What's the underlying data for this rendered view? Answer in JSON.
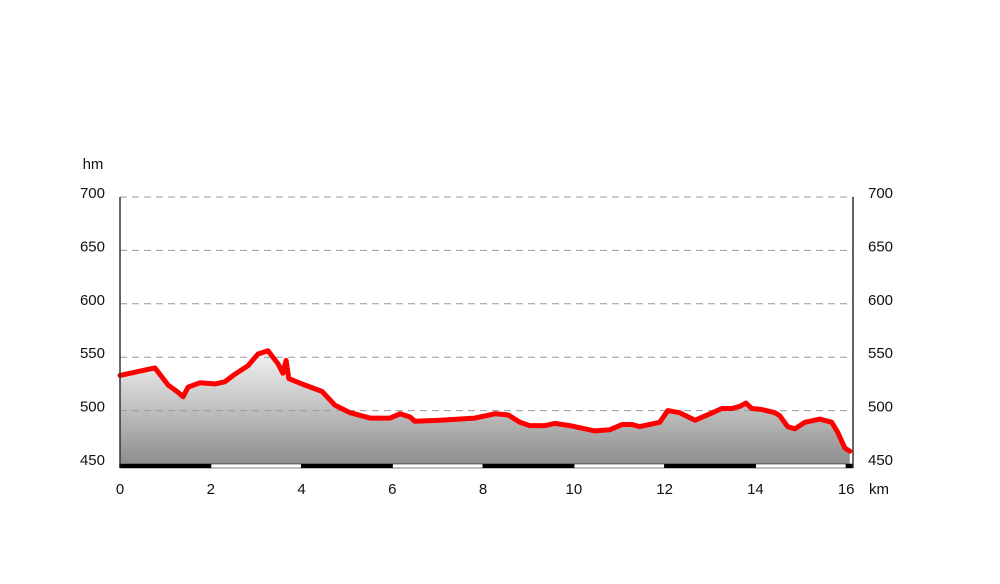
{
  "chart_data": {
    "type": "area-line",
    "y_label": "hm",
    "x_label": "km",
    "x": [
      0,
      0.66,
      0.77,
      0.88,
      1.06,
      1.28,
      1.39,
      1.5,
      1.76,
      2.09,
      2.31,
      2.53,
      2.82,
      3.04,
      3.26,
      3.48,
      3.59,
      3.66,
      3.72,
      4.07,
      4.45,
      4.74,
      5.07,
      5.51,
      5.95,
      6.17,
      6.39,
      6.5,
      7.05,
      7.82,
      8.26,
      8.55,
      8.81,
      9.03,
      9.36,
      9.58,
      9.91,
      10.24,
      10.46,
      10.79,
      11.06,
      11.28,
      11.45,
      11.89,
      12.07,
      12.33,
      12.67,
      13.0,
      13.26,
      13.48,
      13.66,
      13.79,
      13.92,
      14.14,
      14.43,
      14.54,
      14.71,
      14.87,
      15.09,
      15.42,
      15.68,
      15.81,
      15.97,
      16.08
    ],
    "values": [
      533,
      539,
      540,
      534,
      524,
      517,
      513,
      522,
      526,
      525,
      527,
      534,
      542,
      553,
      556,
      544,
      535,
      547,
      530,
      524,
      518,
      505,
      498,
      493,
      493,
      497,
      494,
      490,
      491,
      493,
      497,
      496,
      489,
      486,
      486,
      488,
      486,
      483,
      481,
      482,
      487,
      487,
      485,
      489,
      500,
      498,
      491,
      497,
      502,
      502,
      504,
      507,
      502,
      501,
      498,
      495,
      485,
      483,
      489,
      492,
      489,
      480,
      465,
      462
    ],
    "color": "#ff0000",
    "xlim": [
      0,
      16.15
    ],
    "xticks": [
      0,
      2,
      4,
      6,
      8,
      10,
      12,
      14,
      16
    ],
    "ylim": [
      450,
      700
    ],
    "yticks": [
      450,
      500,
      550,
      600,
      650,
      700
    ],
    "grid": true,
    "right_axis": true
  }
}
